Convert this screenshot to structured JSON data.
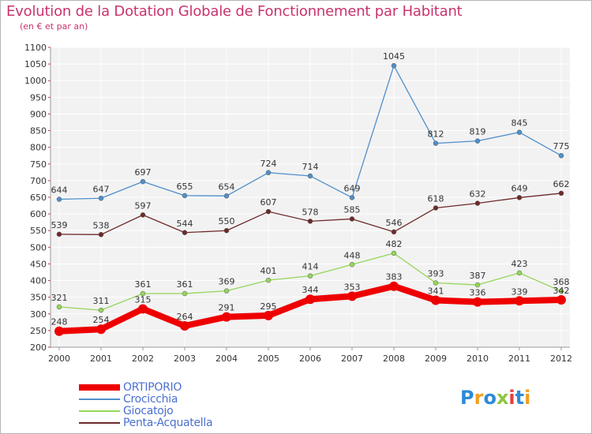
{
  "title": "Evolution de la Dotation Globale de Fonctionnement par Habitant",
  "subtitle": "(en € et par an)",
  "chart_data": {
    "type": "line",
    "x": [
      "2000",
      "2001",
      "2002",
      "2003",
      "2004",
      "2005",
      "2006",
      "2007",
      "2008",
      "2009",
      "2010",
      "2011",
      "2012"
    ],
    "ylim": [
      200,
      1100
    ],
    "yticks": [
      200,
      250,
      300,
      350,
      400,
      450,
      500,
      550,
      600,
      650,
      700,
      750,
      800,
      850,
      900,
      950,
      1000,
      1050,
      1100
    ],
    "grid": true,
    "legend_placement": "bottom-left",
    "series": [
      {
        "name": "ORTIPORIO",
        "color": "#ee0000",
        "values": [
          248,
          254,
          315,
          264,
          291,
          295,
          344,
          353,
          383,
          341,
          336,
          339,
          342
        ],
        "labels": [
          "248",
          "254",
          "315",
          "264",
          "291",
          "295",
          "344",
          "353",
          "383",
          "341",
          "336",
          "339",
          "342"
        ]
      },
      {
        "name": "Crocicchia",
        "color": "#4f8fcb",
        "values": [
          644,
          647,
          697,
          655,
          654,
          724,
          714,
          649,
          1045,
          812,
          819,
          845,
          775
        ],
        "labels": [
          "644",
          "647",
          "697",
          "655",
          "654",
          "724",
          "714",
          "649",
          "1045",
          "812",
          "819",
          "845",
          "775"
        ]
      },
      {
        "name": "Giocatojo",
        "color": "#94d65a",
        "values": [
          321,
          311,
          361,
          361,
          369,
          401,
          414,
          448,
          482,
          393,
          387,
          423,
          368
        ],
        "labels": [
          "321",
          "311",
          "361",
          "361",
          "369",
          "401",
          "414",
          "448",
          "482",
          "393",
          "387",
          "423",
          "368"
        ]
      },
      {
        "name": "Penta-Acquatella",
        "color": "#6e2a2a",
        "values": [
          539,
          538,
          597,
          544,
          550,
          607,
          578,
          585,
          546,
          618,
          632,
          649,
          662
        ],
        "labels": [
          "539",
          "538",
          "597",
          "544",
          "550",
          "607",
          "578",
          "585",
          "546",
          "618",
          "632",
          "649",
          "662"
        ]
      }
    ]
  },
  "legend": {
    "items": [
      {
        "label": "ORTIPORIO",
        "color": "#ee0000"
      },
      {
        "label": "Crocicchia",
        "color": "#4f8fcb"
      },
      {
        "label": "Giocatojo",
        "color": "#94d65a"
      },
      {
        "label": "Penta-Acquatella",
        "color": "#6e2a2a"
      }
    ]
  },
  "logo": {
    "text": "Proxiti"
  }
}
